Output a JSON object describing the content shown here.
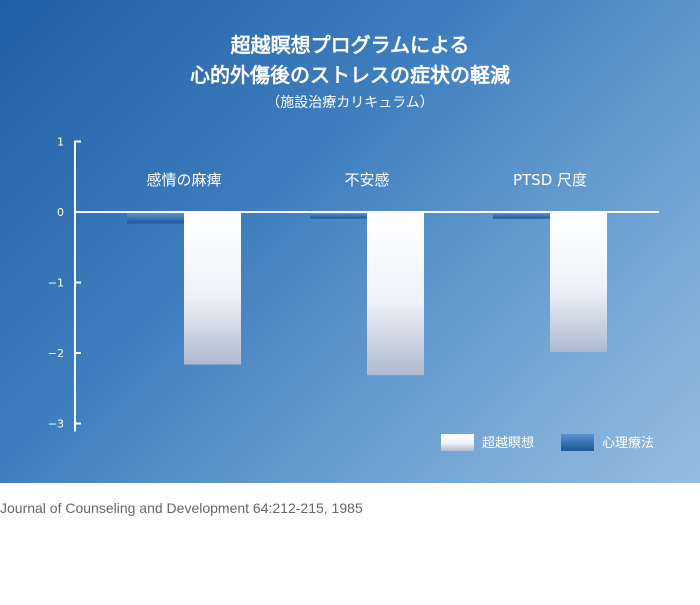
{
  "chart_data": {
    "type": "bar",
    "title_line1": "超越瞑想プログラムによる",
    "title_line2": "心的外傷後のストレスの症状の軽減",
    "subtitle": "（施設治療カリキュラム）",
    "categories": [
      "感情の麻痺",
      "不安感",
      "PTSD 尺度"
    ],
    "series": [
      {
        "name": "心理療法",
        "values": [
          -0.15,
          -0.08,
          -0.08
        ],
        "color": "#3a74b8"
      },
      {
        "name": "超越瞑想",
        "values": [
          -2.15,
          -2.3,
          -1.97
        ],
        "color": "#ffffff"
      }
    ],
    "legend_order": [
      "超越瞑想",
      "心理療法"
    ],
    "yticks": [
      1,
      0,
      -1,
      -2,
      -3
    ],
    "ytick_labels": [
      "1",
      "0",
      "−1",
      "−2",
      "−3"
    ],
    "ylim": [
      -3,
      1
    ],
    "xlabel": "",
    "ylabel": ""
  },
  "source": "Journal of Counseling and Development 64:212-215, 1985"
}
